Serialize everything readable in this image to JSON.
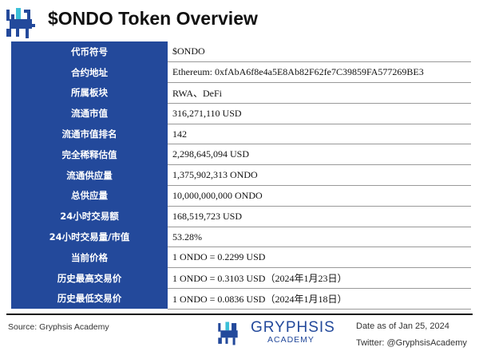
{
  "title": "$ONDO Token Overview",
  "colors": {
    "accent": "#23499b",
    "logo_highlight": "#3cc0d8"
  },
  "rows": [
    {
      "label": "代币符号",
      "value": "$ONDO"
    },
    {
      "label": "合约地址",
      "value": "Ethereum: 0xfAbA6f8e4a5E8Ab82F62fe7C39859FA577269BE3"
    },
    {
      "label": "所属板块",
      "value": "RWA、DeFi"
    },
    {
      "label": "流通市值",
      "value": "316,271,110 USD"
    },
    {
      "label": "流通市值排名",
      "value": "142"
    },
    {
      "label": "完全稀释估值",
      "value": "2,298,645,094 USD"
    },
    {
      "label": "流通供应量",
      "value": "1,375,902,313 ONDO"
    },
    {
      "label": "总供应量",
      "value": "10,000,000,000 ONDO"
    },
    {
      "label": "24小时交易额",
      "value": "168,519,723 USD"
    },
    {
      "label": "24小时交易量/市值",
      "value": "53.28%"
    },
    {
      "label": "当前价格",
      "value": "1 ONDO = 0.2299 USD"
    },
    {
      "label": "历史最高交易价",
      "value": "1 ONDO = 0.3103 USD（2024年1月23日）"
    },
    {
      "label": "历史最低交易价",
      "value": "1 ONDO = 0.0836 USD（2024年1月18日）"
    }
  ],
  "footer": {
    "source": "Source: Gryphsis Academy",
    "brand": "GRYPHSIS",
    "brand_sub": "ACADEMY",
    "date": "Date as of Jan 25, 2024",
    "twitter": "Twitter: @GryphsisAcademy"
  }
}
